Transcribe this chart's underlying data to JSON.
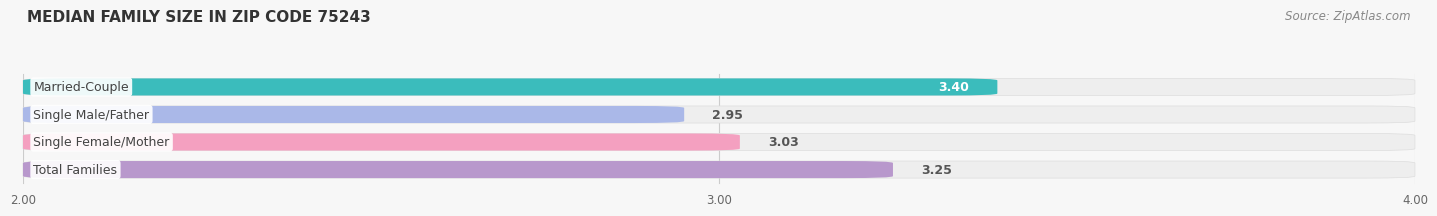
{
  "title": "MEDIAN FAMILY SIZE IN ZIP CODE 75243",
  "source": "Source: ZipAtlas.com",
  "categories": [
    "Married-Couple",
    "Single Male/Father",
    "Single Female/Mother",
    "Total Families"
  ],
  "values": [
    3.4,
    2.95,
    3.03,
    3.25
  ],
  "bar_colors": [
    "#3bbcbc",
    "#aab8e8",
    "#f4a0c0",
    "#b898cc"
  ],
  "bar_bg_colors": [
    "#eeeeee",
    "#eeeeee",
    "#eeeeee",
    "#eeeeee"
  ],
  "xlim_data": [
    2.0,
    4.0
  ],
  "xticks": [
    2.0,
    3.0,
    4.0
  ],
  "xtick_labels": [
    "2.00",
    "3.00",
    "4.00"
  ],
  "background_color": "#f7f7f7",
  "bar_height": 0.62,
  "title_fontsize": 11,
  "label_fontsize": 9,
  "value_fontsize": 9,
  "source_fontsize": 8.5,
  "value_colors": [
    "#ffffff",
    "#555555",
    "#555555",
    "#ffffff"
  ]
}
